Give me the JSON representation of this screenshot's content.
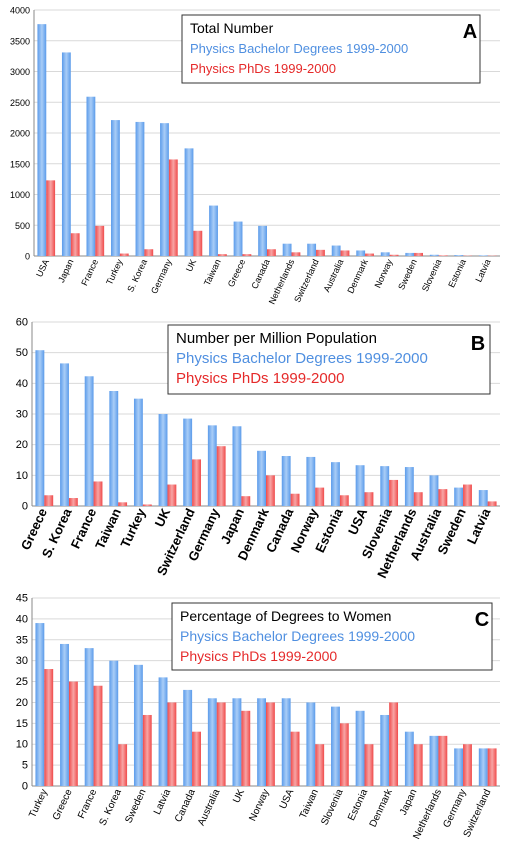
{
  "colors": {
    "bachelor": "#5b9bea",
    "phd": "#f04a4a",
    "bachelor_text": "#4f8fe0",
    "phd_text": "#e52a2a",
    "grid": "#d9d9d9",
    "axis": "#888888"
  },
  "chart_data": [
    {
      "type": "bar",
      "panel_letter": "A",
      "title": "Total Number",
      "ylim": [
        0,
        4000
      ],
      "yticks": [
        0,
        500,
        1000,
        1500,
        2000,
        2500,
        3000,
        3500,
        4000
      ],
      "grid": true,
      "legend": "top-right",
      "categories": [
        "USA",
        "Japan",
        "France",
        "Turkey",
        "S. Korea",
        "Germany",
        "UK",
        "Taiwan",
        "Greece",
        "Canada",
        "Netherlands",
        "Switzerland",
        "Australia",
        "Denmark",
        "Norway",
        "Sweden",
        "Slovenia",
        "Estonia",
        "Latvia"
      ],
      "series": [
        {
          "name": "Physics Bachelor Degrees 1999-2000",
          "values": [
            3770,
            3310,
            2590,
            2210,
            2180,
            2160,
            1750,
            820,
            560,
            490,
            200,
            200,
            170,
            90,
            60,
            50,
            20,
            15,
            10
          ]
        },
        {
          "name": "Physics PhDs 1999-2000",
          "values": [
            1230,
            370,
            490,
            40,
            110,
            1570,
            410,
            30,
            30,
            110,
            60,
            100,
            90,
            40,
            20,
            50,
            10,
            5,
            5
          ]
        }
      ]
    },
    {
      "type": "bar",
      "panel_letter": "B",
      "title": "Number per Million Population",
      "ylim": [
        0,
        60
      ],
      "yticks": [
        0,
        10,
        20,
        30,
        40,
        50,
        60
      ],
      "grid": true,
      "legend": "top-right",
      "categories": [
        "Greece",
        "S. Korea",
        "France",
        "Taiwan",
        "Turkey",
        "UK",
        "Switzerland",
        "Germany",
        "Japan",
        "Denmark",
        "Canada",
        "Norway",
        "Estonia",
        "USA",
        "Slovenia",
        "Netherlands",
        "Australia",
        "Sweden",
        "Latvia"
      ],
      "series": [
        {
          "name": "Physics Bachelor Degrees 1999-2000",
          "values": [
            50.8,
            46.5,
            42.3,
            37.5,
            35,
            30,
            28.5,
            26.3,
            26,
            18,
            16.3,
            16,
            14.3,
            13.3,
            13,
            12.7,
            10,
            6,
            5.2
          ]
        },
        {
          "name": "Physics PhDs 1999-2000",
          "values": [
            3.5,
            2.6,
            8,
            1.2,
            0.5,
            7,
            15.2,
            19.5,
            3.2,
            10,
            4,
            6,
            3.5,
            4.5,
            8.5,
            4.5,
            5.5,
            7,
            1.5
          ]
        }
      ]
    },
    {
      "type": "bar",
      "panel_letter": "C",
      "title": "Percentage of Degrees to Women",
      "ylim": [
        0,
        45
      ],
      "yticks": [
        0,
        5,
        10,
        15,
        20,
        25,
        30,
        35,
        40,
        45
      ],
      "grid": true,
      "legend": "top-right",
      "categories": [
        "Turkey",
        "Greece",
        "France",
        "S. Korea",
        "Sweden",
        "Latvia",
        "Canada",
        "Australia",
        "UK",
        "Norway",
        "USA",
        "Taiwan",
        "Slovenia",
        "Estonia",
        "Denmark",
        "Japan",
        "Netherlands",
        "Germany",
        "Switzerland"
      ],
      "series": [
        {
          "name": "Physics Bachelor Degrees 1999-2000",
          "values": [
            39,
            34,
            33,
            30,
            29,
            26,
            23,
            21,
            21,
            21,
            21,
            20,
            19,
            18,
            17,
            13,
            12,
            9,
            9
          ]
        },
        {
          "name": "Physics PhDs 1999-2000",
          "values": [
            28,
            25,
            24,
            10,
            17,
            20,
            13,
            20,
            18,
            20,
            13,
            10,
            15,
            10,
            20,
            10,
            12,
            10,
            9
          ]
        }
      ]
    }
  ]
}
